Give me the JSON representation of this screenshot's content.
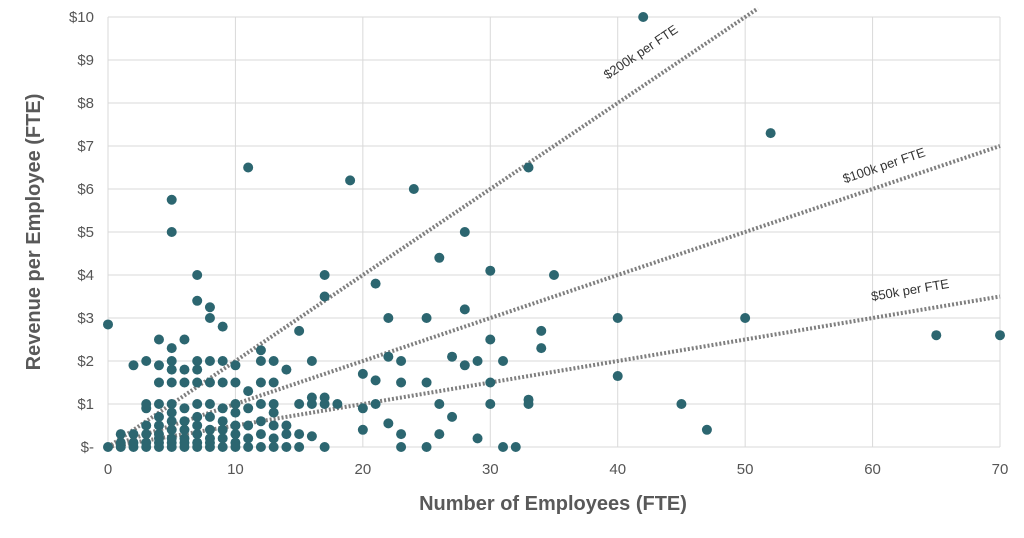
{
  "chart_data": {
    "type": "scatter",
    "title": "",
    "xlabel": "Number of Employees (FTE)",
    "ylabel": "Revenue per Employee (FTE)",
    "xlim": [
      0,
      70
    ],
    "ylim": [
      0,
      10
    ],
    "x_ticks": [
      0,
      10,
      20,
      30,
      40,
      50,
      60,
      70
    ],
    "x_tick_labels": [
      "0",
      "10",
      "20",
      "30",
      "40",
      "50",
      "60",
      "70"
    ],
    "y_ticks": [
      0,
      1,
      2,
      3,
      4,
      5,
      6,
      7,
      8,
      9,
      10
    ],
    "y_tick_labels": [
      "$-",
      "$1",
      "$2",
      "$3",
      "$4",
      "$5",
      "$6",
      "$7",
      "$8",
      "$9",
      "$10"
    ],
    "grid": true,
    "marker_color": "#2c6670",
    "reference_lines": [
      {
        "label": "$200k per FTE",
        "slope": 0.2,
        "x_end": 51
      },
      {
        "label": "$100k per FTE",
        "slope": 0.1,
        "x_end": 70
      },
      {
        "label": "$50k per FTE",
        "slope": 0.05,
        "x_end": 70
      }
    ],
    "points": [
      [
        0,
        0
      ],
      [
        0,
        2.85
      ],
      [
        1,
        0
      ],
      [
        1,
        0.1
      ],
      [
        1,
        0.3
      ],
      [
        2,
        0
      ],
      [
        2,
        0.1
      ],
      [
        2,
        0.3
      ],
      [
        2,
        1.9
      ],
      [
        3,
        0
      ],
      [
        3,
        0.1
      ],
      [
        3,
        0.3
      ],
      [
        3,
        0.5
      ],
      [
        3,
        0.9
      ],
      [
        3,
        1.0
      ],
      [
        3,
        2.0
      ],
      [
        4,
        0
      ],
      [
        4,
        0.1
      ],
      [
        4,
        0.2
      ],
      [
        4,
        0.3
      ],
      [
        4,
        0.5
      ],
      [
        4,
        0.7
      ],
      [
        4,
        1.0
      ],
      [
        4,
        1.5
      ],
      [
        4,
        1.9
      ],
      [
        4,
        2.5
      ],
      [
        5,
        0
      ],
      [
        5,
        0.1
      ],
      [
        5,
        0.2
      ],
      [
        5,
        0.4
      ],
      [
        5,
        0.6
      ],
      [
        5,
        0.8
      ],
      [
        5,
        1.0
      ],
      [
        5,
        1.5
      ],
      [
        5,
        1.8
      ],
      [
        5,
        2.0
      ],
      [
        5,
        2.3
      ],
      [
        5,
        5.0
      ],
      [
        5,
        5.75
      ],
      [
        6,
        0
      ],
      [
        6,
        0.1
      ],
      [
        6,
        0.2
      ],
      [
        6,
        0.4
      ],
      [
        6,
        0.6
      ],
      [
        6,
        0.9
      ],
      [
        6,
        1.5
      ],
      [
        6,
        1.8
      ],
      [
        6,
        2.5
      ],
      [
        7,
        0
      ],
      [
        7,
        0.1
      ],
      [
        7,
        0.3
      ],
      [
        7,
        0.5
      ],
      [
        7,
        0.7
      ],
      [
        7,
        1.0
      ],
      [
        7,
        1.5
      ],
      [
        7,
        1.8
      ],
      [
        7,
        2.0
      ],
      [
        7,
        3.4
      ],
      [
        7,
        4.0
      ],
      [
        8,
        0
      ],
      [
        8,
        0.1
      ],
      [
        8,
        0.2
      ],
      [
        8,
        0.4
      ],
      [
        8,
        0.7
      ],
      [
        8,
        1.0
      ],
      [
        8,
        1.5
      ],
      [
        8,
        2.0
      ],
      [
        8,
        3.0
      ],
      [
        8,
        3.25
      ],
      [
        9,
        0
      ],
      [
        9,
        0.2
      ],
      [
        9,
        0.4
      ],
      [
        9,
        0.6
      ],
      [
        9,
        0.9
      ],
      [
        9,
        1.5
      ],
      [
        9,
        2.0
      ],
      [
        9,
        2.8
      ],
      [
        10,
        0
      ],
      [
        10,
        0.1
      ],
      [
        10,
        0.3
      ],
      [
        10,
        0.5
      ],
      [
        10,
        0.8
      ],
      [
        10,
        1.0
      ],
      [
        10,
        1.5
      ],
      [
        10,
        1.9
      ],
      [
        11,
        0
      ],
      [
        11,
        0.2
      ],
      [
        11,
        0.5
      ],
      [
        11,
        0.9
      ],
      [
        11,
        1.3
      ],
      [
        11,
        6.5
      ],
      [
        12,
        0
      ],
      [
        12,
        0.3
      ],
      [
        12,
        0.6
      ],
      [
        12,
        1.0
      ],
      [
        12,
        1.5
      ],
      [
        12,
        2.0
      ],
      [
        12,
        2.25
      ],
      [
        13,
        0
      ],
      [
        13,
        0.2
      ],
      [
        13,
        0.5
      ],
      [
        13,
        0.8
      ],
      [
        13,
        1.0
      ],
      [
        13,
        1.5
      ],
      [
        13,
        2.0
      ],
      [
        14,
        0
      ],
      [
        14,
        0.3
      ],
      [
        14,
        0.5
      ],
      [
        14,
        1.8
      ],
      [
        15,
        0
      ],
      [
        15,
        0.3
      ],
      [
        15,
        1.0
      ],
      [
        15,
        2.7
      ],
      [
        16,
        0.25
      ],
      [
        16,
        1.0
      ],
      [
        16,
        1.15
      ],
      [
        16,
        2.0
      ],
      [
        17,
        0
      ],
      [
        17,
        1.0
      ],
      [
        17,
        1.15
      ],
      [
        17,
        3.5
      ],
      [
        17,
        4.0
      ],
      [
        18,
        1.0
      ],
      [
        19,
        6.2
      ],
      [
        20,
        0.4
      ],
      [
        20,
        0.9
      ],
      [
        20,
        1.7
      ],
      [
        21,
        1.0
      ],
      [
        21,
        1.55
      ],
      [
        21,
        3.8
      ],
      [
        22,
        0.55
      ],
      [
        22,
        2.1
      ],
      [
        22,
        3.0
      ],
      [
        23,
        0
      ],
      [
        23,
        0.3
      ],
      [
        23,
        1.5
      ],
      [
        23,
        2.0
      ],
      [
        24,
        6.0
      ],
      [
        25,
        0
      ],
      [
        25,
        1.5
      ],
      [
        25,
        3.0
      ],
      [
        26,
        0.3
      ],
      [
        26,
        1.0
      ],
      [
        26,
        4.4
      ],
      [
        27,
        0.7
      ],
      [
        27,
        2.1
      ],
      [
        28,
        1.9
      ],
      [
        28,
        3.2
      ],
      [
        28,
        5.0
      ],
      [
        29,
        0.2
      ],
      [
        29,
        2.0
      ],
      [
        30,
        1.0
      ],
      [
        30,
        1.5
      ],
      [
        30,
        2.5
      ],
      [
        30,
        4.1
      ],
      [
        31,
        0
      ],
      [
        31,
        2.0
      ],
      [
        32,
        0
      ],
      [
        33,
        1.0
      ],
      [
        33,
        1.1
      ],
      [
        33,
        6.5
      ],
      [
        34,
        2.3
      ],
      [
        34,
        2.7
      ],
      [
        35,
        4.0
      ],
      [
        40,
        1.65
      ],
      [
        40,
        3.0
      ],
      [
        42,
        10.0
      ],
      [
        45,
        1.0
      ],
      [
        47,
        0.4
      ],
      [
        50,
        3.0
      ],
      [
        52,
        7.3
      ],
      [
        65,
        2.6
      ],
      [
        70,
        2.6
      ]
    ]
  }
}
